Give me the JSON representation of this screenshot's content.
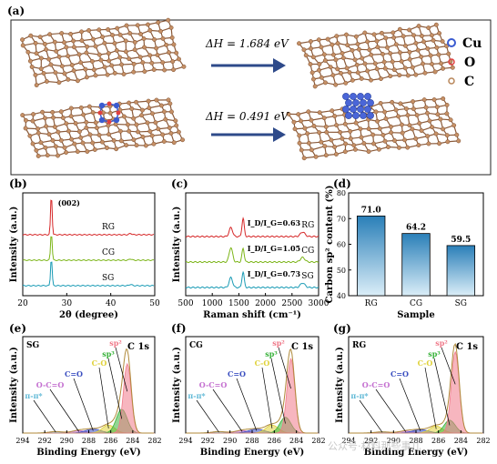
{
  "panel_a": {
    "label": "(a)",
    "dh_top": "ΔH = 1.684 eV",
    "dh_bottom": "ΔH = 0.491 eV",
    "legend": [
      {
        "symbol": "Cu",
        "color": "#3a5bd0"
      },
      {
        "symbol": "O",
        "color": "#e04040"
      },
      {
        "symbol": "C",
        "color": "#b8865a"
      }
    ]
  },
  "chart_data": [
    {
      "id": "b",
      "label": "(b)",
      "type": "line",
      "xlabel": "2θ (degree)",
      "ylabel": "Intensity (a.u.)",
      "xlim": [
        20,
        50
      ],
      "xticks": [
        "20",
        "30",
        "40",
        "50"
      ],
      "peak_label": "(002)",
      "peak_x": 26.5,
      "series": [
        {
          "name": "RG",
          "color": "#d62728"
        },
        {
          "name": "CG",
          "color": "#7cb518"
        },
        {
          "name": "SG",
          "color": "#1a9bb5"
        }
      ]
    },
    {
      "id": "c",
      "label": "(c)",
      "type": "line",
      "xlabel": "Raman shift (cm⁻¹)",
      "ylabel": "Intensity (a.u.)",
      "xlim": [
        500,
        3000
      ],
      "xticks": [
        "500",
        "1000",
        "1500",
        "2000",
        "2500",
        "3000"
      ],
      "series": [
        {
          "name": "RG",
          "color": "#d62728",
          "ratio": "I_D/I_G=0.63"
        },
        {
          "name": "CG",
          "color": "#7cb518",
          "ratio": "I_D/I_G=1.05"
        },
        {
          "name": "SG",
          "color": "#1a9bb5",
          "ratio": "I_D/I_G=0.73"
        }
      ]
    },
    {
      "id": "d",
      "label": "(d)",
      "type": "bar",
      "categories": [
        "RG",
        "CG",
        "SG"
      ],
      "values": [
        71.0,
        64.2,
        59.5
      ],
      "value_labels": [
        "71.0",
        "64.2",
        "59.5"
      ],
      "xlabel": "Sample",
      "ylabel": "Carbon sp² content (%)",
      "ylim": [
        40,
        80
      ],
      "yticks": [
        "40",
        "50",
        "60",
        "70",
        "80"
      ]
    },
    {
      "id": "e",
      "label": "(e)",
      "type": "area",
      "sample": "SG",
      "title": "C 1s",
      "xlabel": "Binding Energy (eV)",
      "ylabel": "Intensity (a.u.)",
      "xlim": [
        294,
        282
      ],
      "xticks": [
        "294",
        "292",
        "290",
        "288",
        "286",
        "284",
        "282"
      ],
      "components": [
        "π-π*",
        "O-C=O",
        "C=O",
        "C-O",
        "sp³",
        "sp²"
      ]
    },
    {
      "id": "f",
      "label": "(f)",
      "type": "area",
      "sample": "CG",
      "title": "C 1s",
      "xlabel": "Binding Energy (eV)",
      "ylabel": "Intensity (a.u.)",
      "xlim": [
        294,
        282
      ],
      "xticks": [
        "294",
        "292",
        "290",
        "288",
        "286",
        "284",
        "282"
      ],
      "components": [
        "π-π*",
        "O-C=O",
        "C=O",
        "C-O",
        "sp³",
        "sp²"
      ]
    },
    {
      "id": "g",
      "label": "(g)",
      "type": "area",
      "sample": "RG",
      "title": "C 1s",
      "xlabel": "Binding Energy (eV)",
      "ylabel": "Intensity (a.u.)",
      "xlim": [
        294,
        282
      ],
      "xticks": [
        "294",
        "292",
        "290",
        "288",
        "286",
        "284",
        "282"
      ],
      "components": [
        "π-π*",
        "O-C=O",
        "C=O",
        "C-O",
        "sp³",
        "sp²"
      ]
    }
  ],
  "watermark": "公众号·材料那些事儿"
}
